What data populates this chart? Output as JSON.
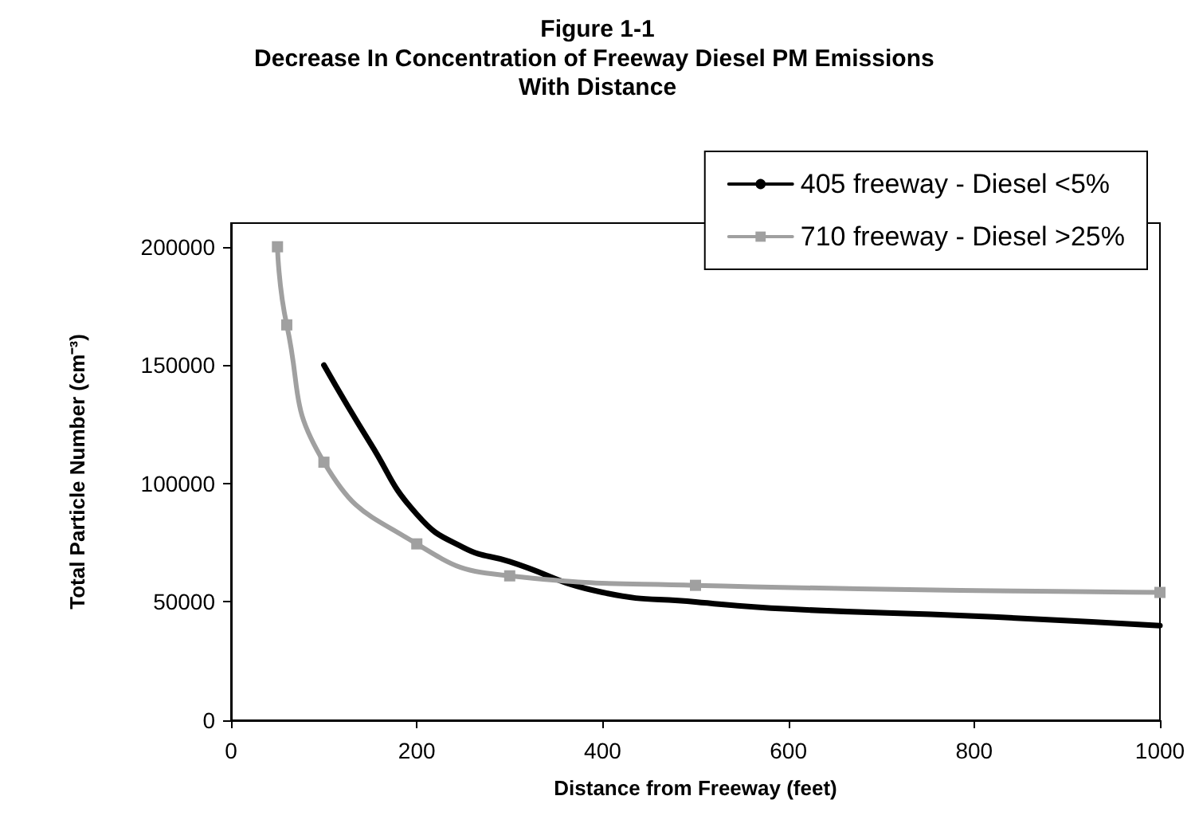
{
  "chart_data": {
    "type": "line",
    "title": "Figure 1-1",
    "subtitle": "Decrease In Concentration of Freeway Diesel PM Emissions With Distance",
    "xlabel": "Distance from Freeway (feet)",
    "ylabel": "Total Particle Number (cm⁻³)",
    "xlim": [
      0,
      1000
    ],
    "xticks": [
      0,
      200,
      400,
      600,
      800,
      1000
    ],
    "ylim": [
      0,
      210000
    ],
    "yticks": [
      0,
      50000,
      100000,
      150000,
      200000
    ],
    "grid": false,
    "legend": "top right",
    "series": [
      {
        "name": "405 freeway - Diesel <5%",
        "color": "#000000",
        "marker": "none",
        "x": [
          100,
          150,
          200,
          250,
          300,
          400,
          500,
          600,
          800,
          1000
        ],
        "values": [
          150000,
          117000,
          87000,
          73000,
          67000,
          54000,
          50000,
          47000,
          44000,
          40000
        ]
      },
      {
        "name": "710 freeway - Diesel >25%",
        "color": "#a0a0a0",
        "marker": "square",
        "x": [
          50,
          60,
          100,
          200,
          300,
          500,
          1000
        ],
        "values": [
          200000,
          167000,
          109000,
          74500,
          61000,
          57000,
          54000
        ]
      }
    ]
  }
}
